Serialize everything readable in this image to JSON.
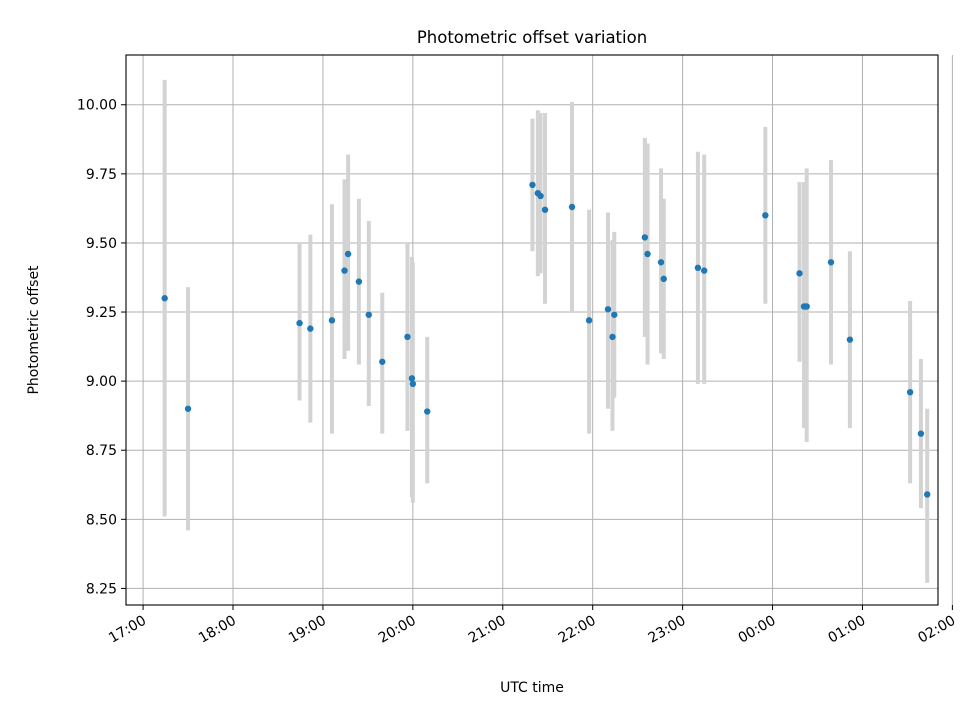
{
  "chart_data": {
    "type": "scatter",
    "title": "Photometric offset variation",
    "xlabel": "UTC time",
    "ylabel": "Photometric offset",
    "grid": true,
    "x_unit": "hours since 17:00 UTC",
    "xlim": [
      -0.19,
      8.84
    ],
    "ylim": [
      8.19,
      10.18
    ],
    "x_ticks": [
      0,
      1,
      2,
      3,
      4,
      5,
      6,
      7,
      8,
      9
    ],
    "x_tick_labels": [
      "17:00",
      "18:00",
      "19:00",
      "20:00",
      "21:00",
      "22:00",
      "23:00",
      "00:00",
      "01:00",
      "02:00"
    ],
    "y_ticks": [
      8.25,
      8.5,
      8.75,
      9.0,
      9.25,
      9.5,
      9.75,
      10.0
    ],
    "y_tick_labels": [
      "8.25",
      "8.50",
      "8.75",
      "9.00",
      "9.25",
      "9.50",
      "9.75",
      "10.00"
    ],
    "colors": {
      "point": "#1f77b4",
      "errorbar": "#d3d3d3",
      "grid": "#b0b0b0"
    },
    "points": [
      {
        "x": 0.24,
        "y": 9.3,
        "ymin": 8.51,
        "ymax": 10.09
      },
      {
        "x": 0.5,
        "y": 8.9,
        "ymin": 8.46,
        "ymax": 9.34
      },
      {
        "x": 1.74,
        "y": 9.21,
        "ymin": 8.93,
        "ymax": 9.5
      },
      {
        "x": 1.86,
        "y": 9.19,
        "ymin": 8.85,
        "ymax": 9.53
      },
      {
        "x": 2.1,
        "y": 9.22,
        "ymin": 8.81,
        "ymax": 9.64
      },
      {
        "x": 2.24,
        "y": 9.4,
        "ymin": 9.08,
        "ymax": 9.73
      },
      {
        "x": 2.28,
        "y": 9.46,
        "ymin": 9.11,
        "ymax": 9.82
      },
      {
        "x": 2.4,
        "y": 9.36,
        "ymin": 9.06,
        "ymax": 9.66
      },
      {
        "x": 2.51,
        "y": 9.24,
        "ymin": 8.91,
        "ymax": 9.58
      },
      {
        "x": 2.66,
        "y": 9.07,
        "ymin": 8.81,
        "ymax": 9.32
      },
      {
        "x": 2.94,
        "y": 9.16,
        "ymin": 8.82,
        "ymax": 9.5
      },
      {
        "x": 2.99,
        "y": 9.01,
        "ymin": 8.58,
        "ymax": 9.45
      },
      {
        "x": 3.0,
        "y": 8.99,
        "ymin": 8.56,
        "ymax": 9.43
      },
      {
        "x": 3.16,
        "y": 8.89,
        "ymin": 8.63,
        "ymax": 9.16
      },
      {
        "x": 4.33,
        "y": 9.71,
        "ymin": 9.47,
        "ymax": 9.95
      },
      {
        "x": 4.39,
        "y": 9.68,
        "ymin": 9.38,
        "ymax": 9.98
      },
      {
        "x": 4.42,
        "y": 9.67,
        "ymin": 9.39,
        "ymax": 9.97
      },
      {
        "x": 4.47,
        "y": 9.62,
        "ymin": 9.28,
        "ymax": 9.97
      },
      {
        "x": 4.77,
        "y": 9.63,
        "ymin": 9.25,
        "ymax": 10.01
      },
      {
        "x": 4.96,
        "y": 9.22,
        "ymin": 8.81,
        "ymax": 9.62
      },
      {
        "x": 5.17,
        "y": 9.26,
        "ymin": 8.9,
        "ymax": 9.61
      },
      {
        "x": 5.22,
        "y": 9.16,
        "ymin": 8.82,
        "ymax": 9.51
      },
      {
        "x": 5.24,
        "y": 9.24,
        "ymin": 8.94,
        "ymax": 9.54
      },
      {
        "x": 5.58,
        "y": 9.52,
        "ymin": 9.16,
        "ymax": 9.88
      },
      {
        "x": 5.61,
        "y": 9.46,
        "ymin": 9.06,
        "ymax": 9.86
      },
      {
        "x": 5.76,
        "y": 9.43,
        "ymin": 9.1,
        "ymax": 9.77
      },
      {
        "x": 5.79,
        "y": 9.37,
        "ymin": 9.08,
        "ymax": 9.66
      },
      {
        "x": 6.17,
        "y": 9.41,
        "ymin": 8.99,
        "ymax": 9.83
      },
      {
        "x": 6.24,
        "y": 9.4,
        "ymin": 8.99,
        "ymax": 9.82
      },
      {
        "x": 6.92,
        "y": 9.6,
        "ymin": 9.28,
        "ymax": 9.92
      },
      {
        "x": 7.3,
        "y": 9.39,
        "ymin": 9.07,
        "ymax": 9.72
      },
      {
        "x": 7.35,
        "y": 9.27,
        "ymin": 8.83,
        "ymax": 9.72
      },
      {
        "x": 7.38,
        "y": 9.27,
        "ymin": 8.78,
        "ymax": 9.77
      },
      {
        "x": 7.65,
        "y": 9.43,
        "ymin": 9.06,
        "ymax": 9.8
      },
      {
        "x": 7.86,
        "y": 9.15,
        "ymin": 8.83,
        "ymax": 9.47
      },
      {
        "x": 8.53,
        "y": 8.96,
        "ymin": 8.63,
        "ymax": 9.29
      },
      {
        "x": 8.65,
        "y": 8.81,
        "ymin": 8.54,
        "ymax": 9.08
      },
      {
        "x": 8.72,
        "y": 8.59,
        "ymin": 8.27,
        "ymax": 8.9
      }
    ]
  }
}
